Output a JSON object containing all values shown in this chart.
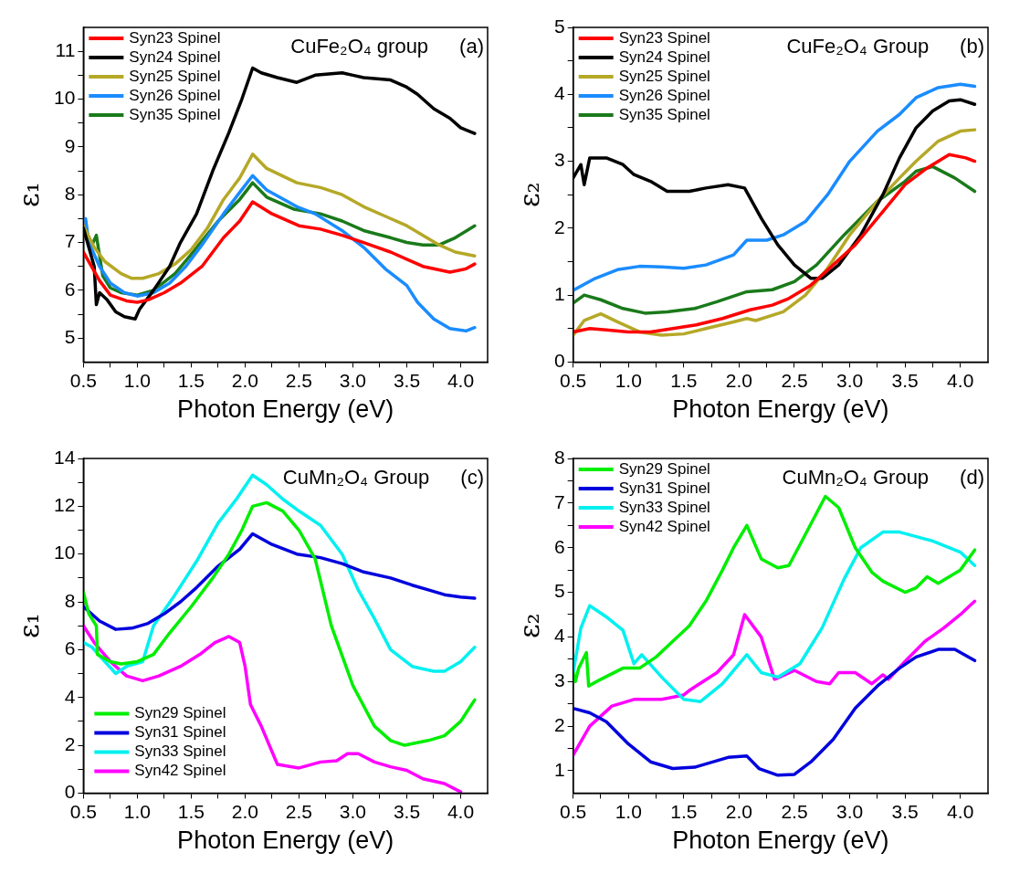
{
  "chart_data": [
    {
      "type": "line",
      "ylabel": "ε₁",
      "xlabel": "Photon Energy (eV)",
      "annotations": [
        "CuFe₂O₄ group",
        "(a)"
      ],
      "legend": "top left",
      "xlim": [
        0.5,
        4.25
      ],
      "ylim": [
        4.5,
        11.5
      ],
      "xticks": [
        0.5,
        {
          "value": 0.75,
          "label": null
        },
        {
          "value": 1,
          "label": "1.0"
        },
        {
          "value": 1.25,
          "label": null
        },
        1.5,
        {
          "value": 1.75,
          "label": null
        },
        {
          "value": 2,
          "label": "2.0"
        },
        {
          "value": 2.25,
          "label": null
        },
        2.5,
        {
          "value": 2.75,
          "label": null
        },
        {
          "value": 3,
          "label": "3.0"
        },
        {
          "value": 3.25,
          "label": null
        },
        3.5,
        {
          "value": 3.75,
          "label": null
        },
        {
          "value": 4,
          "label": "4.0"
        }
      ],
      "yticks": [
        5,
        {
          "value": 5.5,
          "label": null
        },
        6,
        {
          "value": 6.5,
          "label": null
        },
        7,
        {
          "value": 7.5,
          "label": null
        },
        8,
        {
          "value": 8.5,
          "label": null
        },
        9,
        {
          "value": 9.5,
          "label": null
        },
        10,
        {
          "value": 10.5,
          "label": null
        },
        11
      ],
      "series": [
        {
          "name": "Syn23 Spinel",
          "color": "#ff0000",
          "x": [
            0.5,
            0.65,
            0.75,
            0.9,
            1.0,
            1.1,
            1.25,
            1.4,
            1.6,
            1.8,
            1.95,
            2.07,
            2.25,
            2.5,
            2.7,
            2.9,
            3.1,
            3.35,
            3.5,
            3.65,
            3.9,
            4.05,
            4.13
          ],
          "values": [
            6.8,
            6.2,
            5.9,
            5.78,
            5.75,
            5.8,
            5.95,
            6.15,
            6.5,
            7.1,
            7.45,
            7.85,
            7.6,
            7.35,
            7.28,
            7.15,
            7.0,
            6.8,
            6.65,
            6.5,
            6.38,
            6.45,
            6.55
          ]
        },
        {
          "name": "Syn24 Spinel",
          "color": "#000000",
          "x": [
            0.5,
            0.55,
            0.6,
            0.62,
            0.65,
            0.72,
            0.8,
            0.88,
            0.98,
            1.02,
            1.15,
            1.3,
            1.4,
            1.55,
            1.7,
            1.85,
            1.97,
            2.07,
            2.15,
            2.3,
            2.48,
            2.65,
            2.9,
            3.0,
            3.1,
            3.35,
            3.5,
            3.6,
            3.75,
            3.9,
            4.0,
            4.13
          ],
          "values": [
            7.3,
            6.9,
            6.5,
            5.7,
            5.95,
            5.8,
            5.55,
            5.45,
            5.4,
            5.6,
            6.0,
            6.5,
            7.0,
            7.6,
            8.5,
            9.3,
            10.0,
            10.65,
            10.55,
            10.45,
            10.35,
            10.5,
            10.55,
            10.5,
            10.45,
            10.4,
            10.25,
            10.1,
            9.8,
            9.6,
            9.4,
            9.28
          ]
        },
        {
          "name": "Syn25 Spinel",
          "color": "#b5a827",
          "x": [
            0.5,
            0.6,
            0.7,
            0.85,
            0.95,
            1.05,
            1.2,
            1.35,
            1.5,
            1.65,
            1.8,
            1.95,
            2.07,
            2.2,
            2.48,
            2.7,
            2.9,
            3.1,
            3.3,
            3.5,
            3.65,
            3.8,
            3.95,
            4.13
          ],
          "values": [
            7.35,
            6.9,
            6.6,
            6.35,
            6.25,
            6.25,
            6.35,
            6.55,
            6.85,
            7.3,
            7.9,
            8.35,
            8.85,
            8.55,
            8.25,
            8.15,
            8.0,
            7.75,
            7.55,
            7.35,
            7.15,
            6.95,
            6.8,
            6.72
          ]
        },
        {
          "name": "Syn26 Spinel",
          "color": "#1a8cff",
          "x": [
            0.52,
            0.55,
            0.65,
            0.75,
            0.88,
            1.0,
            1.15,
            1.3,
            1.45,
            1.6,
            1.8,
            1.95,
            2.07,
            2.2,
            2.48,
            2.65,
            2.9,
            3.1,
            3.3,
            3.5,
            3.6,
            3.75,
            3.9,
            4.05,
            4.13
          ],
          "values": [
            7.5,
            7.0,
            6.5,
            6.15,
            5.95,
            5.88,
            5.95,
            6.15,
            6.5,
            6.95,
            7.6,
            8.05,
            8.4,
            8.1,
            7.75,
            7.6,
            7.25,
            6.9,
            6.45,
            6.1,
            5.75,
            5.4,
            5.2,
            5.15,
            5.22
          ]
        },
        {
          "name": "Syn35 Spinel",
          "color": "#1a7a1a",
          "x": [
            0.5,
            0.57,
            0.62,
            0.68,
            0.75,
            0.85,
            1.0,
            1.15,
            1.35,
            1.5,
            1.75,
            1.95,
            2.07,
            2.2,
            2.45,
            2.7,
            2.9,
            3.1,
            3.35,
            3.5,
            3.65,
            3.8,
            3.95,
            4.13
          ],
          "values": [
            7.3,
            6.9,
            7.15,
            6.3,
            6.05,
            5.95,
            5.9,
            6.0,
            6.35,
            6.75,
            7.45,
            7.9,
            8.25,
            7.95,
            7.7,
            7.6,
            7.45,
            7.25,
            7.1,
            7.0,
            6.95,
            6.95,
            7.1,
            7.35
          ]
        }
      ]
    },
    {
      "type": "line",
      "ylabel": "ε₂",
      "xlabel": "Photon Energy (eV)",
      "annotations": [
        "CuFe₂O₄ Group",
        "(b)"
      ],
      "legend": "top left",
      "xlim": [
        0.5,
        4.25
      ],
      "ylim": [
        0,
        5
      ],
      "xticks": [
        0.5,
        {
          "value": 0.75,
          "label": null
        },
        {
          "value": 1,
          "label": "1.0"
        },
        {
          "value": 1.25,
          "label": null
        },
        1.5,
        {
          "value": 1.75,
          "label": null
        },
        {
          "value": 2,
          "label": "2.0"
        },
        {
          "value": 2.25,
          "label": null
        },
        2.5,
        {
          "value": 2.75,
          "label": null
        },
        {
          "value": 3,
          "label": "3.0"
        },
        {
          "value": 3.25,
          "label": null
        },
        3.5,
        {
          "value": 3.75,
          "label": null
        },
        {
          "value": 4,
          "label": "4.0"
        }
      ],
      "yticks": [
        0,
        {
          "value": 0.5,
          "label": null
        },
        1,
        {
          "value": 1.5,
          "label": null
        },
        2,
        {
          "value": 2.5,
          "label": null
        },
        3,
        {
          "value": 3.5,
          "label": null
        },
        4,
        {
          "value": 4.5,
          "label": null
        },
        5
      ],
      "series": [
        {
          "name": "Syn23 Spinel",
          "color": "#ff0000",
          "x": [
            0.5,
            0.65,
            0.8,
            1.0,
            1.2,
            1.4,
            1.6,
            1.85,
            2.1,
            2.3,
            2.45,
            2.65,
            2.85,
            3.05,
            3.3,
            3.5,
            3.7,
            3.9,
            4.05,
            4.13
          ],
          "values": [
            0.45,
            0.5,
            0.48,
            0.45,
            0.45,
            0.5,
            0.55,
            0.65,
            0.78,
            0.85,
            0.95,
            1.15,
            1.45,
            1.75,
            2.25,
            2.65,
            2.9,
            3.1,
            3.05,
            3.0
          ]
        },
        {
          "name": "Syn24 Spinel",
          "color": "#000000",
          "x": [
            0.5,
            0.57,
            0.6,
            0.65,
            0.8,
            0.95,
            1.05,
            1.2,
            1.35,
            1.55,
            1.7,
            1.9,
            2.05,
            2.2,
            2.35,
            2.5,
            2.65,
            2.75,
            2.9,
            3.1,
            3.3,
            3.45,
            3.6,
            3.75,
            3.9,
            4.0,
            4.13
          ],
          "values": [
            2.75,
            2.95,
            2.65,
            3.05,
            3.05,
            2.95,
            2.8,
            2.7,
            2.55,
            2.55,
            2.6,
            2.65,
            2.6,
            2.15,
            1.75,
            1.45,
            1.25,
            1.25,
            1.45,
            1.9,
            2.5,
            3.05,
            3.5,
            3.75,
            3.9,
            3.92,
            3.85
          ]
        },
        {
          "name": "Syn25 Spinel",
          "color": "#b5a827",
          "x": [
            0.5,
            0.6,
            0.75,
            0.9,
            1.1,
            1.3,
            1.5,
            1.7,
            1.95,
            2.07,
            2.15,
            2.4,
            2.6,
            2.8,
            3.0,
            3.25,
            3.45,
            3.6,
            3.8,
            4.0,
            4.13
          ],
          "values": [
            0.4,
            0.62,
            0.72,
            0.6,
            0.45,
            0.4,
            0.42,
            0.5,
            0.6,
            0.65,
            0.62,
            0.75,
            1.0,
            1.4,
            1.9,
            2.4,
            2.75,
            3.0,
            3.3,
            3.45,
            3.47
          ]
        },
        {
          "name": "Syn26 Spinel",
          "color": "#1a8cff",
          "x": [
            0.5,
            0.7,
            0.9,
            1.1,
            1.3,
            1.5,
            1.7,
            1.95,
            2.07,
            2.25,
            2.4,
            2.6,
            2.8,
            3.0,
            3.25,
            3.45,
            3.6,
            3.8,
            4.0,
            4.13
          ],
          "values": [
            1.07,
            1.25,
            1.38,
            1.43,
            1.42,
            1.4,
            1.45,
            1.6,
            1.82,
            1.82,
            1.9,
            2.1,
            2.5,
            3.0,
            3.45,
            3.7,
            3.95,
            4.1,
            4.15,
            4.12
          ]
        },
        {
          "name": "Syn35 Spinel",
          "color": "#1a7a1a",
          "x": [
            0.5,
            0.6,
            0.75,
            0.95,
            1.15,
            1.35,
            1.6,
            1.8,
            2.07,
            2.3,
            2.5,
            2.7,
            2.95,
            3.25,
            3.5,
            3.6,
            3.75,
            3.95,
            4.13
          ],
          "values": [
            0.88,
            1.0,
            0.93,
            0.8,
            0.73,
            0.75,
            0.8,
            0.9,
            1.05,
            1.08,
            1.2,
            1.45,
            1.9,
            2.4,
            2.7,
            2.85,
            2.92,
            2.75,
            2.55
          ]
        }
      ]
    },
    {
      "type": "line",
      "ylabel": "ε₁",
      "xlabel": "Photon Energy (eV)",
      "annotations": [
        "CuMn₂O₄ Group",
        "(c)"
      ],
      "legend": "bottom left",
      "xlim": [
        0.5,
        4.25
      ],
      "ylim": [
        0,
        14
      ],
      "xticks": [
        0.5,
        {
          "value": 0.75,
          "label": null
        },
        {
          "value": 1,
          "label": "1.0"
        },
        {
          "value": 1.25,
          "label": null
        },
        1.5,
        {
          "value": 1.75,
          "label": null
        },
        {
          "value": 2,
          "label": "2.0"
        },
        {
          "value": 2.25,
          "label": null
        },
        2.5,
        {
          "value": 2.75,
          "label": null
        },
        {
          "value": 3,
          "label": "3.0"
        },
        {
          "value": 3.25,
          "label": null
        },
        3.5,
        {
          "value": 3.75,
          "label": null
        },
        {
          "value": 4,
          "label": "4.0"
        }
      ],
      "yticks": [
        0,
        {
          "value": 1,
          "label": null
        },
        2,
        {
          "value": 3,
          "label": null
        },
        4,
        {
          "value": 5,
          "label": null
        },
        6,
        {
          "value": 7,
          "label": null
        },
        8,
        {
          "value": 9,
          "label": null
        },
        10,
        {
          "value": 11,
          "label": null
        },
        12,
        {
          "value": 13,
          "label": null
        },
        14
      ],
      "series": [
        {
          "name": "Syn29 Spinel",
          "color": "#00ee00",
          "x": [
            0.5,
            0.55,
            0.62,
            0.63,
            0.75,
            0.85,
            1.0,
            1.15,
            1.3,
            1.5,
            1.7,
            1.85,
            1.97,
            2.07,
            2.2,
            2.35,
            2.5,
            2.65,
            2.8,
            3.0,
            3.2,
            3.35,
            3.48,
            3.7,
            3.85,
            4.0,
            4.13
          ],
          "values": [
            8.4,
            7.5,
            7.0,
            5.8,
            5.5,
            5.4,
            5.5,
            5.8,
            6.7,
            7.8,
            9.0,
            10.0,
            11.0,
            12.0,
            12.15,
            11.8,
            11.0,
            9.8,
            7.0,
            4.5,
            2.8,
            2.2,
            2.0,
            2.2,
            2.4,
            3.0,
            3.9
          ]
        },
        {
          "name": "Syn31 Spinel",
          "color": "#0000dd",
          "x": [
            0.5,
            0.65,
            0.8,
            0.95,
            1.1,
            1.25,
            1.4,
            1.55,
            1.75,
            1.95,
            2.07,
            2.25,
            2.48,
            2.7,
            2.9,
            3.1,
            3.35,
            3.55,
            3.7,
            3.85,
            4.0,
            4.13
          ],
          "values": [
            7.8,
            7.2,
            6.85,
            6.9,
            7.1,
            7.5,
            8.0,
            8.6,
            9.5,
            10.2,
            10.85,
            10.4,
            10.0,
            9.85,
            9.6,
            9.25,
            9.0,
            8.7,
            8.5,
            8.3,
            8.2,
            8.15
          ]
        },
        {
          "name": "Syn33 Spinel",
          "color": "#00f0f0",
          "x": [
            0.5,
            0.58,
            0.7,
            0.8,
            0.9,
            1.05,
            1.15,
            1.35,
            1.55,
            1.75,
            1.92,
            2.07,
            2.2,
            2.35,
            2.5,
            2.7,
            2.9,
            3.05,
            3.2,
            3.35,
            3.55,
            3.75,
            3.85,
            4.0,
            4.13
          ],
          "values": [
            6.3,
            6.1,
            5.5,
            5.0,
            5.3,
            5.5,
            7.0,
            8.3,
            9.7,
            11.3,
            12.3,
            13.3,
            12.9,
            12.3,
            11.8,
            11.2,
            10.0,
            8.5,
            7.3,
            6.0,
            5.3,
            5.1,
            5.1,
            5.5,
            6.1
          ]
        },
        {
          "name": "Syn42 Spinel",
          "color": "#ff00ff",
          "x": [
            0.5,
            0.6,
            0.75,
            0.9,
            1.05,
            1.2,
            1.4,
            1.58,
            1.72,
            1.85,
            1.95,
            2.0,
            2.05,
            2.15,
            2.3,
            2.5,
            2.7,
            2.85,
            2.95,
            3.05,
            3.2,
            3.35,
            3.5,
            3.65,
            3.85,
            4.0
          ],
          "values": [
            7.0,
            6.3,
            5.5,
            4.9,
            4.7,
            4.9,
            5.3,
            5.8,
            6.3,
            6.55,
            6.3,
            5.3,
            3.7,
            2.8,
            1.2,
            1.05,
            1.3,
            1.35,
            1.65,
            1.65,
            1.3,
            1.1,
            0.95,
            0.6,
            0.4,
            0.05
          ]
        }
      ]
    },
    {
      "type": "line",
      "ylabel": "ε₂",
      "xlabel": "Photon Energy (eV)",
      "annotations": [
        "CuMn₂O₄ Group",
        "(d)"
      ],
      "legend": "top left",
      "xlim": [
        0.5,
        4.25
      ],
      "ylim": [
        0.5,
        8
      ],
      "xticks": [
        0.5,
        {
          "value": 0.75,
          "label": null
        },
        {
          "value": 1,
          "label": "1.0"
        },
        {
          "value": 1.25,
          "label": null
        },
        1.5,
        {
          "value": 1.75,
          "label": null
        },
        {
          "value": 2,
          "label": "2.0"
        },
        {
          "value": 2.25,
          "label": null
        },
        2.5,
        {
          "value": 2.75,
          "label": null
        },
        {
          "value": 3,
          "label": "3.0"
        },
        {
          "value": 3.25,
          "label": null
        },
        3.5,
        {
          "value": 3.75,
          "label": null
        },
        {
          "value": 4,
          "label": "4.0"
        }
      ],
      "yticks": [
        1,
        {
          "value": 1.5,
          "label": null
        },
        2,
        {
          "value": 2.5,
          "label": null
        },
        3,
        {
          "value": 3.5,
          "label": null
        },
        4,
        {
          "value": 4.5,
          "label": null
        },
        5,
        {
          "value": 5.5,
          "label": null
        },
        6,
        {
          "value": 6.5,
          "label": null
        },
        7,
        {
          "value": 7.5,
          "label": null
        },
        8
      ],
      "series": [
        {
          "name": "Syn29 Spinel",
          "color": "#00ee00",
          "x": [
            0.5,
            0.52,
            0.55,
            0.62,
            0.64,
            0.75,
            0.95,
            1.1,
            1.25,
            1.4,
            1.55,
            1.7,
            1.85,
            1.95,
            2.07,
            2.2,
            2.35,
            2.45,
            2.6,
            2.78,
            2.9,
            3.05,
            3.2,
            3.3,
            3.5,
            3.6,
            3.7,
            3.8,
            4.0,
            4.13
          ],
          "values": [
            3.2,
            3.0,
            3.3,
            3.65,
            2.9,
            3.05,
            3.3,
            3.3,
            3.55,
            3.9,
            4.25,
            4.8,
            5.5,
            6.0,
            6.5,
            5.75,
            5.55,
            5.6,
            6.3,
            7.15,
            6.9,
            6.0,
            5.45,
            5.25,
            5.0,
            5.1,
            5.35,
            5.2,
            5.5,
            5.95
          ]
        },
        {
          "name": "Syn31 Spinel",
          "color": "#0000dd",
          "x": [
            0.5,
            0.65,
            0.8,
            1.0,
            1.2,
            1.4,
            1.6,
            1.9,
            2.07,
            2.18,
            2.35,
            2.5,
            2.65,
            2.85,
            3.05,
            3.25,
            3.45,
            3.6,
            3.8,
            3.95,
            4.13
          ],
          "values": [
            2.4,
            2.3,
            2.1,
            1.6,
            1.2,
            1.05,
            1.08,
            1.3,
            1.33,
            1.05,
            0.9,
            0.92,
            1.2,
            1.7,
            2.4,
            2.9,
            3.3,
            3.55,
            3.72,
            3.72,
            3.47
          ]
        },
        {
          "name": "Syn33 Spinel",
          "color": "#00f0f0",
          "x": [
            0.5,
            0.57,
            0.65,
            0.8,
            0.95,
            1.05,
            1.12,
            1.3,
            1.5,
            1.65,
            1.85,
            2.07,
            2.2,
            2.35,
            2.55,
            2.75,
            2.95,
            3.1,
            3.3,
            3.45,
            3.75,
            4.0,
            4.13
          ],
          "values": [
            3.2,
            4.2,
            4.7,
            4.45,
            4.15,
            3.4,
            3.6,
            3.1,
            2.6,
            2.55,
            2.95,
            3.6,
            3.2,
            3.1,
            3.4,
            4.2,
            5.3,
            6.0,
            6.35,
            6.35,
            6.15,
            5.9,
            5.6
          ]
        },
        {
          "name": "Syn42 Spinel",
          "color": "#ff00ff",
          "x": [
            0.5,
            0.65,
            0.85,
            1.05,
            1.3,
            1.5,
            1.55,
            1.8,
            1.95,
            2.05,
            2.2,
            2.32,
            2.5,
            2.7,
            2.82,
            2.9,
            3.05,
            3.2,
            3.3,
            3.35,
            3.5,
            3.68,
            3.85,
            4.0,
            4.13
          ],
          "values": [
            1.35,
            2.0,
            2.45,
            2.6,
            2.6,
            2.7,
            2.8,
            3.2,
            3.6,
            4.5,
            4.0,
            3.05,
            3.25,
            3.0,
            2.95,
            3.2,
            3.2,
            2.95,
            3.15,
            3.05,
            3.45,
            3.9,
            4.2,
            4.5,
            4.8
          ]
        }
      ]
    }
  ]
}
